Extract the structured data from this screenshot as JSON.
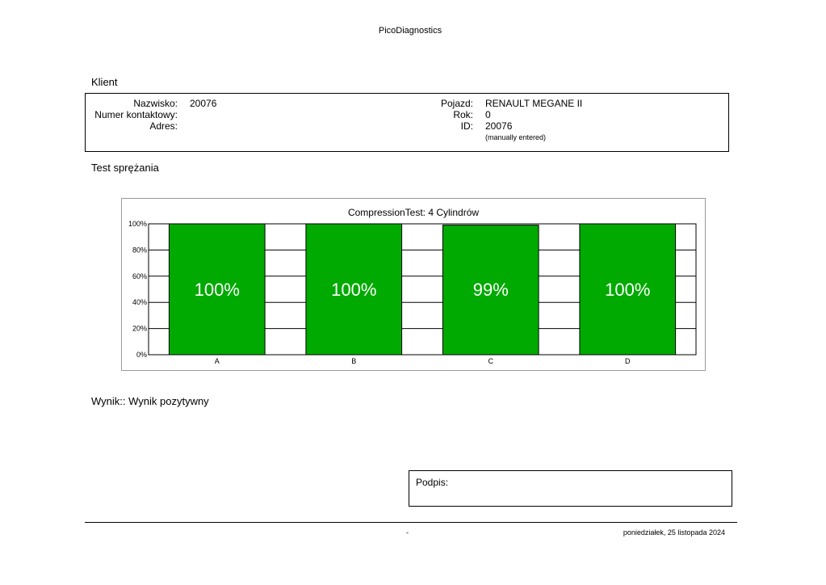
{
  "header": {
    "app_name": "PicoDiagnostics"
  },
  "client_section": {
    "heading": "Klient",
    "surname_label": "Nazwisko:",
    "surname_value": "20076",
    "contact_label": "Numer kontaktowy:",
    "contact_value": "",
    "address_label": "Adres:",
    "address_value": "",
    "vehicle_label": "Pojazd:",
    "vehicle_value": "RENAULT MEGANE II",
    "year_label": "Rok:",
    "year_value": "0",
    "id_label": "ID:",
    "id_value": "20076",
    "id_note": "(manually entered)"
  },
  "test_section": {
    "heading": "Test sprężania"
  },
  "colors": {
    "bar_fill": "#00aa00",
    "grid": "#000000"
  },
  "chart_data": {
    "type": "bar",
    "title": "CompressionTest: 4 Cylindrów",
    "categories": [
      "A",
      "B",
      "C",
      "D"
    ],
    "values": [
      100,
      100,
      99,
      100
    ],
    "data_labels": [
      "100%",
      "100%",
      "99%",
      "100%"
    ],
    "yticks": [
      "0%",
      "20%",
      "40%",
      "60%",
      "80%",
      "100%"
    ],
    "ylim": [
      0,
      100
    ],
    "grid": true
  },
  "result": {
    "text": "Wynik:: Wynik pozytywny"
  },
  "signature": {
    "label": "Podpis:"
  },
  "footer": {
    "separator": "-",
    "date": "poniedziałek, 25 listopada 2024"
  }
}
